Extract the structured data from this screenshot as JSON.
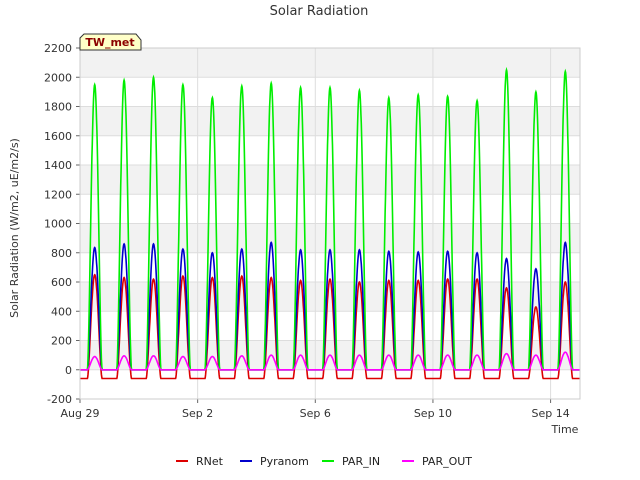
{
  "chart_data": {
    "type": "line",
    "title": "Solar Radiation",
    "xlabel": "Time",
    "ylabel": "Solar Radiation (W/m2, uE/m2/s)",
    "badge": "TW_met",
    "x_range_days": [
      0,
      17
    ],
    "x_ticks": [
      {
        "day": 0,
        "label": "Aug 29"
      },
      {
        "day": 4,
        "label": "Sep 2"
      },
      {
        "day": 8,
        "label": "Sep 6"
      },
      {
        "day": 12,
        "label": "Sep 10"
      },
      {
        "day": 16,
        "label": "Sep 14"
      }
    ],
    "ylim": [
      -200,
      2200
    ],
    "y_ticks": [
      -200,
      0,
      200,
      400,
      600,
      800,
      1000,
      1200,
      1400,
      1600,
      1800,
      2000,
      2200
    ],
    "grid": true,
    "legend_position": "bottom",
    "daily_peak_dates": [
      "Aug 29",
      "Aug 30",
      "Aug 31",
      "Sep 1",
      "Sep 2",
      "Sep 3",
      "Sep 4",
      "Sep 5",
      "Sep 6",
      "Sep 7",
      "Sep 8",
      "Sep 9",
      "Sep 10",
      "Sep 11",
      "Sep 12",
      "Sep 13",
      "Sep 14"
    ],
    "series": [
      {
        "name": "RNet",
        "color": "#dd0000",
        "daily_peaks": [
          650,
          630,
          620,
          640,
          630,
          640,
          630,
          610,
          620,
          600,
          610,
          610,
          620,
          620,
          560,
          430,
          600
        ],
        "night_value": -60
      },
      {
        "name": "Pyranom",
        "color": "#0000cc",
        "daily_peaks": [
          835,
          860,
          860,
          825,
          800,
          825,
          870,
          820,
          820,
          820,
          810,
          805,
          810,
          800,
          760,
          690,
          870
        ],
        "night_value": 0
      },
      {
        "name": "PAR_IN",
        "color": "#00ee00",
        "daily_peaks": [
          1950,
          1980,
          2000,
          1950,
          1860,
          1940,
          1960,
          1930,
          1930,
          1910,
          1860,
          1880,
          1870,
          1840,
          2050,
          1900,
          2040
        ],
        "night_value": 0
      },
      {
        "name": "PAR_OUT",
        "color": "#ff00ff",
        "daily_peaks": [
          90,
          95,
          95,
          90,
          90,
          95,
          100,
          100,
          100,
          100,
          100,
          100,
          100,
          100,
          110,
          100,
          120
        ],
        "night_value": 0
      }
    ]
  }
}
